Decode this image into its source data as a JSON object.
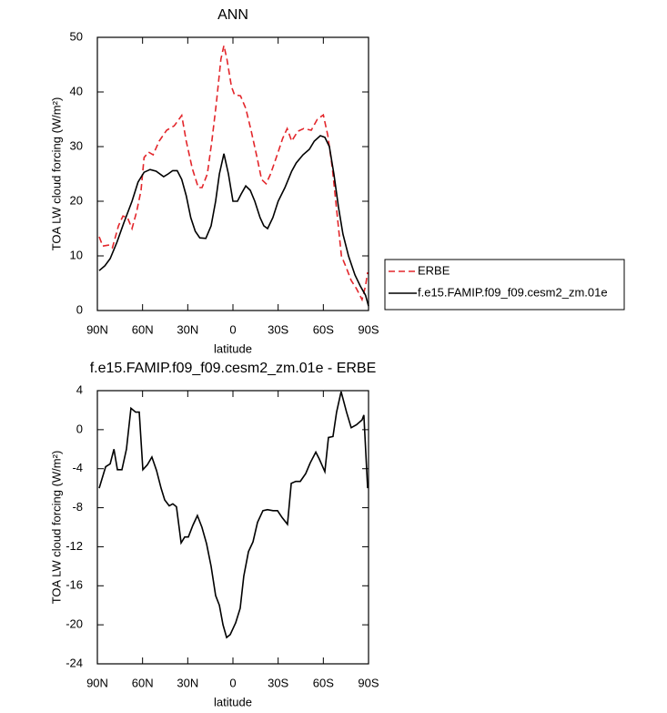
{
  "chart_data": [
    {
      "type": "line",
      "title": "ANN",
      "xlabel": "latitude",
      "ylabel": "TOA LW cloud forcing (W/m²)",
      "xlim": [
        90,
        -90
      ],
      "xticks": [
        {
          "value": 90,
          "label": "90N"
        },
        {
          "value": 60,
          "label": "60N"
        },
        {
          "value": 30,
          "label": "30N"
        },
        0,
        {
          "value": -30,
          "label": "30S"
        },
        {
          "value": -60,
          "label": "60S"
        },
        {
          "value": -90,
          "label": "90S"
        }
      ],
      "ylim": [
        0,
        50
      ],
      "yticks": [
        0,
        10,
        20,
        30,
        40,
        50
      ],
      "legend": "right",
      "series": [
        {
          "name": "ERBE",
          "color": "#e3262b",
          "dash": true,
          "x": [
            88.8,
            86.4,
            82,
            80,
            76,
            73,
            70,
            67,
            64,
            61,
            59,
            56,
            53,
            49,
            44,
            39,
            34,
            31,
            27,
            23,
            20.5,
            17,
            14,
            11,
            8,
            6,
            4,
            1,
            -1,
            -5,
            -8.5,
            -12,
            -16,
            -19,
            -22,
            -25,
            -30,
            -33,
            -36,
            -39,
            -43,
            -47,
            -52,
            -56,
            -60,
            -63,
            -66,
            -69,
            -72,
            -75,
            -78.5,
            -82,
            -85.7,
            -88,
            -89.4
          ],
          "values": [
            13.5,
            11.8,
            12,
            11.5,
            15.5,
            17.3,
            17,
            15,
            18,
            22,
            28,
            29,
            28.5,
            31,
            33,
            33.8,
            35.7,
            31,
            26,
            22.5,
            22.5,
            25,
            31,
            38,
            46,
            48.5,
            46,
            41,
            39.5,
            39.3,
            37,
            33,
            28,
            24,
            23.2,
            25,
            29,
            31.5,
            33.3,
            31,
            32.8,
            33.3,
            33,
            35,
            35.8,
            32,
            26,
            18,
            10,
            8,
            5.5,
            4,
            2,
            4.5,
            7
          ]
        },
        {
          "name": "f.e15.FAMIP.f09_f09.cesm2_zm.01e",
          "color": "#000000",
          "dash": false,
          "x": [
            88.8,
            85,
            81.5,
            77,
            72.5,
            67,
            63,
            59,
            55,
            51,
            46,
            43,
            40,
            37,
            34,
            31,
            28,
            25,
            22,
            18,
            14.5,
            11.5,
            9,
            6,
            3,
            0,
            -3,
            -5.4,
            -8.5,
            -11.5,
            -14.5,
            -18,
            -20.5,
            -23,
            -26.5,
            -30,
            -34.5,
            -39,
            -42,
            -46.5,
            -50.7,
            -54,
            -58,
            -61,
            -64,
            -67,
            -70,
            -73,
            -76.7,
            -81,
            -84.5,
            -88,
            -90
          ],
          "values": [
            7.3,
            8.2,
            9.5,
            12.5,
            16,
            20,
            23.5,
            25.3,
            25.8,
            25.5,
            24.5,
            25,
            25.6,
            25.6,
            24,
            21,
            17,
            14.5,
            13.3,
            13.2,
            15.5,
            20,
            25,
            28.7,
            25,
            20,
            20,
            21.3,
            22.8,
            22,
            20,
            17,
            15.5,
            15,
            17,
            20,
            22.5,
            25.5,
            27,
            28.5,
            29.5,
            31,
            32,
            31.7,
            30,
            25,
            19,
            14,
            10,
            6.5,
            4.5,
            2.8,
            0.8
          ]
        }
      ]
    },
    {
      "type": "line",
      "title": "f.e15.FAMIP.f09_f09.cesm2_zm.01e - ERBE",
      "xlabel": "latitude",
      "ylabel": "TOA LW cloud forcing (W/m²)",
      "xlim": [
        90,
        -90
      ],
      "xticks": [
        {
          "value": 90,
          "label": "90N"
        },
        {
          "value": 60,
          "label": "60N"
        },
        {
          "value": 30,
          "label": "30N"
        },
        0,
        {
          "value": -30,
          "label": "30S"
        },
        {
          "value": -60,
          "label": "60S"
        },
        {
          "value": -90,
          "label": "90S"
        }
      ],
      "ylim": [
        -24,
        4
      ],
      "yticks": [
        4,
        0,
        -4,
        -8,
        -12,
        -16,
        -20,
        -24
      ],
      "series": [
        {
          "color": "#000000",
          "dash": false,
          "x": [
            88.8,
            84.5,
            81.5,
            79,
            76.7,
            73.7,
            70.7,
            67.7,
            64.6,
            62.2,
            59.8,
            56.8,
            53.8,
            50.7,
            47.7,
            45.3,
            42.3,
            39.9,
            37.5,
            34.4,
            32,
            29.6,
            26.6,
            23.6,
            20.6,
            17.5,
            14.5,
            11.5,
            9,
            6.6,
            4.2,
            1.8,
            -1.8,
            -4.8,
            -7.2,
            -10.3,
            -13.3,
            -16.3,
            -19.9,
            -22.9,
            -26.6,
            -29.6,
            -32.6,
            -36.2,
            -38.7,
            -41.7,
            -44.7,
            -48.3,
            -51.3,
            -55,
            -57.3,
            -61,
            -63.4,
            -66.4,
            -68.8,
            -71.8,
            -75.4,
            -78.5,
            -82,
            -85.7,
            -86.9,
            -89.4
          ],
          "values": [
            -6,
            -3.8,
            -3.5,
            -2,
            -4.1,
            -4.1,
            -2,
            2.2,
            1.8,
            1.8,
            -4.1,
            -3.6,
            -2.8,
            -4.2,
            -6,
            -7.2,
            -7.8,
            -7.6,
            -7.9,
            -11.6,
            -11,
            -11,
            -9.8,
            -8.8,
            -10,
            -11.7,
            -14,
            -17,
            -18,
            -20,
            -21.3,
            -21,
            -19.8,
            -18.3,
            -15,
            -12.5,
            -11.5,
            -9.5,
            -8.3,
            -8.2,
            -8.3,
            -8.3,
            -9,
            -9.7,
            -5.5,
            -5.3,
            -5.3,
            -4.5,
            -3.4,
            -2.3,
            -3,
            -4.3,
            -0.8,
            -0.7,
            1.8,
            3.9,
            1.8,
            0.2,
            0.5,
            1,
            1.5,
            -6
          ]
        }
      ]
    }
  ]
}
